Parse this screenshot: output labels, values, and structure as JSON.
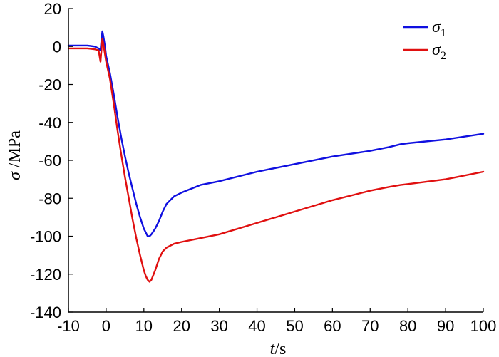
{
  "chart_data": {
    "type": "line",
    "xlabel": {
      "symbol": "t",
      "unit": "/s"
    },
    "ylabel": {
      "symbol": "σ",
      "unit": " /MPa"
    },
    "xlim": [
      -10,
      100
    ],
    "ylim": [
      -140,
      20
    ],
    "xticks": [
      -10,
      0,
      10,
      20,
      30,
      40,
      50,
      60,
      70,
      80,
      90,
      100
    ],
    "yticks": [
      20,
      0,
      -20,
      -40,
      -60,
      -80,
      -100,
      -120,
      -140
    ],
    "grid": false,
    "legend_position": "top-right",
    "series": [
      {
        "name": "σ",
        "subscript": "1",
        "color": "#1010e0",
        "x": [
          -10,
          -5,
          -3,
          -2,
          -1.5,
          -1,
          -0.7,
          -0.3,
          0,
          1,
          2,
          3,
          4,
          5,
          6,
          7,
          8,
          9,
          10,
          10.5,
          11,
          11.5,
          12,
          13,
          14,
          15,
          16,
          18,
          20,
          25,
          30,
          40,
          50,
          60,
          70,
          75,
          78,
          80,
          90,
          100
        ],
        "y": [
          0.5,
          0.5,
          0,
          -1,
          -2,
          8,
          5,
          0,
          -5,
          -14,
          -25,
          -37,
          -48,
          -58,
          -67,
          -75,
          -83,
          -90,
          -96,
          -98,
          -100,
          -100,
          -99,
          -96,
          -92,
          -87,
          -83,
          -79,
          -77,
          -73,
          -71,
          -66,
          -62,
          -58,
          -55,
          -53,
          -51.5,
          -51,
          -49,
          -46
        ]
      },
      {
        "name": "σ",
        "subscript": "2",
        "color": "#e01010",
        "x": [
          -10,
          -5,
          -3,
          -2,
          -1.5,
          -1,
          -0.8,
          -0.4,
          0,
          1,
          2,
          3,
          4,
          5,
          6,
          7,
          8,
          9,
          10,
          10.5,
          11,
          11.5,
          12,
          13,
          14,
          15,
          16,
          18,
          20,
          25,
          30,
          40,
          50,
          60,
          70,
          75,
          78,
          80,
          90,
          100
        ],
        "y": [
          -1,
          -1,
          -1.5,
          -2,
          -8,
          4,
          2,
          -3,
          -8,
          -17,
          -30,
          -44,
          -57,
          -69,
          -80,
          -91,
          -101,
          -110,
          -118,
          -121,
          -123,
          -124,
          -123,
          -118,
          -112,
          -108,
          -106,
          -104,
          -103,
          -101,
          -99,
          -93,
          -87,
          -81,
          -76,
          -74,
          -73,
          -72.5,
          -70,
          -66
        ]
      }
    ]
  }
}
